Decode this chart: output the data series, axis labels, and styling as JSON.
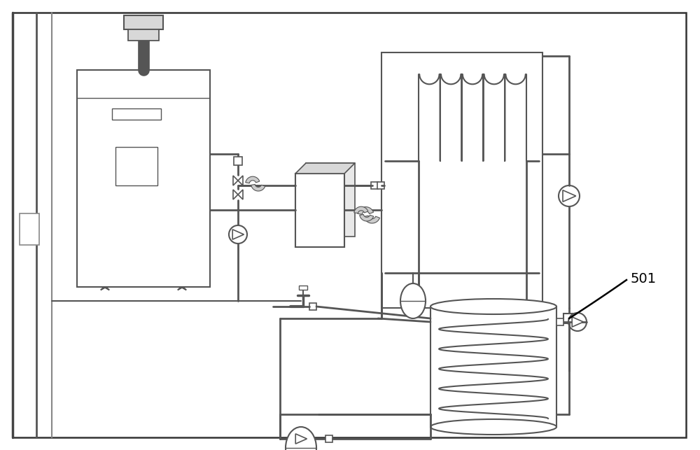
{
  "bg_color": "#ffffff",
  "lc": "#888888",
  "dc": "#555555",
  "label_501": "501",
  "figsize": [
    10.0,
    6.43
  ],
  "dpi": 100
}
